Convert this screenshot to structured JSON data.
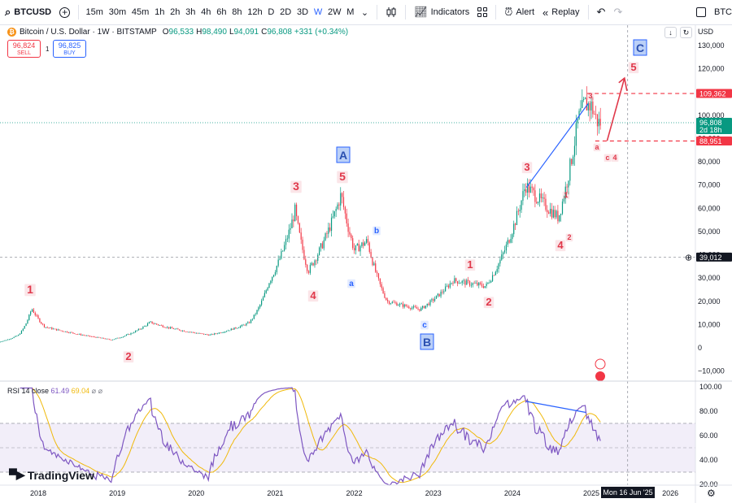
{
  "toolbar": {
    "symbol": "BTCUSD",
    "timeframes": [
      "15m",
      "30m",
      "45m",
      "1h",
      "2h",
      "3h",
      "4h",
      "6h",
      "8h",
      "12h",
      "D",
      "2D",
      "3D",
      "W",
      "2W",
      "M"
    ],
    "active_timeframe": "W",
    "indicators_label": "Indicators",
    "alert_label": "Alert",
    "replay_label": "Replay",
    "right_symbol": "BTC"
  },
  "legend": {
    "title": "Bitcoin / U.S. Dollar · 1W · BITSTAMP",
    "open_key": "O",
    "open": "96,533",
    "high_key": "H",
    "high": "98,490",
    "low_key": "L",
    "low": "94,091",
    "close_key": "C",
    "close": "96,808",
    "change": "+331 (+0.34%)",
    "sell_price": "96,824",
    "sell_label": "SELL",
    "spread": "1",
    "buy_price": "96,825",
    "buy_label": "BUY"
  },
  "price_axis": {
    "currency": "USD",
    "ticks": [
      "130,000",
      "120,000",
      "110,000",
      "100,000",
      "90,000",
      "80,000",
      "70,000",
      "60,000",
      "50,000",
      "40,000",
      "30,000",
      "20,000",
      "10,000",
      "0",
      "−10,000"
    ],
    "badges": {
      "upper": "109,362",
      "current": "96,808",
      "countdown": "2d 18h",
      "lower": "88,951",
      "crosshair": "39,012"
    }
  },
  "time_axis": {
    "labels": [
      "2018",
      "2019",
      "2020",
      "2021",
      "2022",
      "2023",
      "2024",
      "2025",
      "2026"
    ],
    "crosshair_date": "Mon 16 Jun '25"
  },
  "rsi": {
    "name": "RSI 14 close",
    "value": "61.49",
    "ma_value": "69.04",
    "ticks": [
      "100.00",
      "80.00",
      "60.00",
      "40.00",
      "20.00"
    ]
  },
  "waves": {
    "red": [
      "1",
      "2",
      "3",
      "4",
      "5",
      "1",
      "2",
      "3",
      "4",
      "5",
      "1",
      "2",
      "3",
      "4",
      "3",
      "a",
      "c",
      "4"
    ],
    "blue": [
      "a",
      "b",
      "c"
    ],
    "boxed": [
      "A",
      "B",
      "C"
    ]
  },
  "colors": {
    "up": "#089981",
    "down": "#f23645",
    "rsi_line": "#7e57c2",
    "rsi_ma": "#f0b90b",
    "wave_red": "#e0384a",
    "wave_blue": "#2962ff"
  },
  "branding": "TradingView",
  "chart_data": {
    "type": "candlestick",
    "title": "Bitcoin / U.S. Dollar · 1W · BITSTAMP",
    "xlabel": "",
    "ylabel": "",
    "ylim": [
      -10000,
      130000
    ],
    "x_range": [
      "2017-07",
      "2026-06"
    ],
    "approx_weekly_closes": [
      [
        "2017-07",
        2500
      ],
      [
        "2017-10",
        5500
      ],
      [
        "2017-12",
        17000
      ],
      [
        "2018-02",
        9000
      ],
      [
        "2018-06",
        6500
      ],
      [
        "2018-11",
        4000
      ],
      [
        "2018-12",
        3400
      ],
      [
        "2019-06",
        11000
      ],
      [
        "2019-09",
        8500
      ],
      [
        "2020-03",
        5500
      ],
      [
        "2020-09",
        10700
      ],
      [
        "2020-12",
        28000
      ],
      [
        "2021-04",
        59000
      ],
      [
        "2021-06",
        33000
      ],
      [
        "2021-11",
        66000
      ],
      [
        "2022-01",
        42000
      ],
      [
        "2022-03",
        46000
      ],
      [
        "2022-06",
        20000
      ],
      [
        "2022-11",
        16500
      ],
      [
        "2023-04",
        29000
      ],
      [
        "2023-09",
        26500
      ],
      [
        "2024-03",
        70000
      ],
      [
        "2024-08",
        56000
      ],
      [
        "2024-11",
        98000
      ],
      [
        "2024-12",
        105000
      ],
      [
        "2025-01",
        104000
      ],
      [
        "2025-02",
        96808
      ]
    ],
    "horizontal_levels": [
      109362,
      88951
    ],
    "rsi_range": [
      20,
      100
    ],
    "rsi_bands": [
      30,
      70
    ]
  }
}
